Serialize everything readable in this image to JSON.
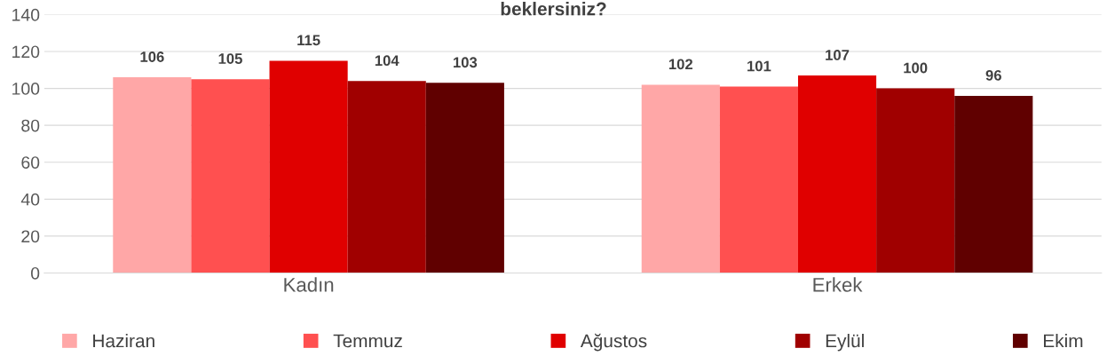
{
  "chart_data": {
    "type": "bar",
    "title": "beklersiniz?",
    "categories": [
      "Kadın",
      "Erkek"
    ],
    "series": [
      {
        "name": "Haziran",
        "color": "#ffa7a7",
        "values": [
          106,
          102
        ]
      },
      {
        "name": "Temmuz",
        "color": "#ff5050",
        "values": [
          105,
          101
        ]
      },
      {
        "name": "Ağustos",
        "color": "#e00000",
        "values": [
          115,
          107
        ]
      },
      {
        "name": "Eylül",
        "color": "#a00000",
        "values": [
          104,
          100
        ]
      },
      {
        "name": "Ekim",
        "color": "#600000",
        "values": [
          103,
          96
        ]
      }
    ],
    "ylim": [
      0,
      140
    ],
    "yticks": [
      0,
      20,
      40,
      60,
      80,
      100,
      120,
      140
    ],
    "grid": "y",
    "legend": "bottom",
    "data_labels": true
  }
}
